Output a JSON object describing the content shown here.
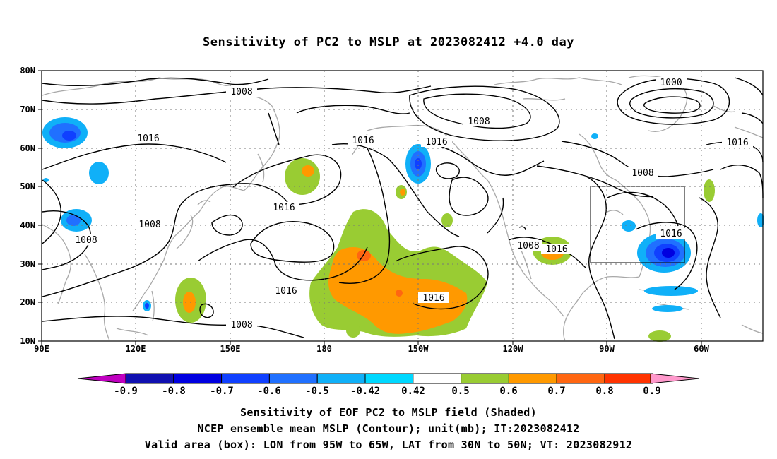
{
  "title": "Sensitivity of PC2 to MSLP at 2023082412 +4.0 day",
  "lat_labels": [
    "80N",
    "70N",
    "60N",
    "50N",
    "40N",
    "30N",
    "20N",
    "10N"
  ],
  "lon_labels": [
    "90E",
    "120E",
    "150E",
    "180",
    "150W",
    "120W",
    "90W",
    "60W"
  ],
  "contour_labels": [
    {
      "text": "1008"
    },
    {
      "text": "1000"
    },
    {
      "text": "1008"
    },
    {
      "text": "1016"
    },
    {
      "text": "1016"
    },
    {
      "text": "1016"
    },
    {
      "text": "1016"
    },
    {
      "text": "1008"
    },
    {
      "text": "1016"
    },
    {
      "text": "1008"
    },
    {
      "text": "1016"
    },
    {
      "text": "1008"
    },
    {
      "text": "1016"
    },
    {
      "text": "1016"
    },
    {
      "text": "1008"
    }
  ],
  "colorbar": {
    "ticks": [
      "-0.9",
      "-0.8",
      "-0.7",
      "-0.6",
      "-0.5",
      "-0.42",
      "0.42",
      "0.5",
      "0.6",
      "0.7",
      "0.8",
      "0.9"
    ],
    "colors": [
      "#c000c0",
      "#1010b0",
      "#0000e0",
      "#1040ff",
      "#2070ff",
      "#10b0f8",
      "#00d8ff",
      "#ffffff",
      "#99cc33",
      "#ff9900",
      "#ff6611",
      "#ff3300",
      "#ff0000",
      "#ff99cc"
    ]
  },
  "captions": {
    "line1": "Sensitivity of EOF PC2 to MSLP field (Shaded)",
    "line2": "NCEP ensemble mean MSLP (Contour); unit(mb); IT:2023082412",
    "line3": "Valid area (box): LON from 95W to 65W, LAT from 30N to 50N; VT: 2023082912"
  }
}
